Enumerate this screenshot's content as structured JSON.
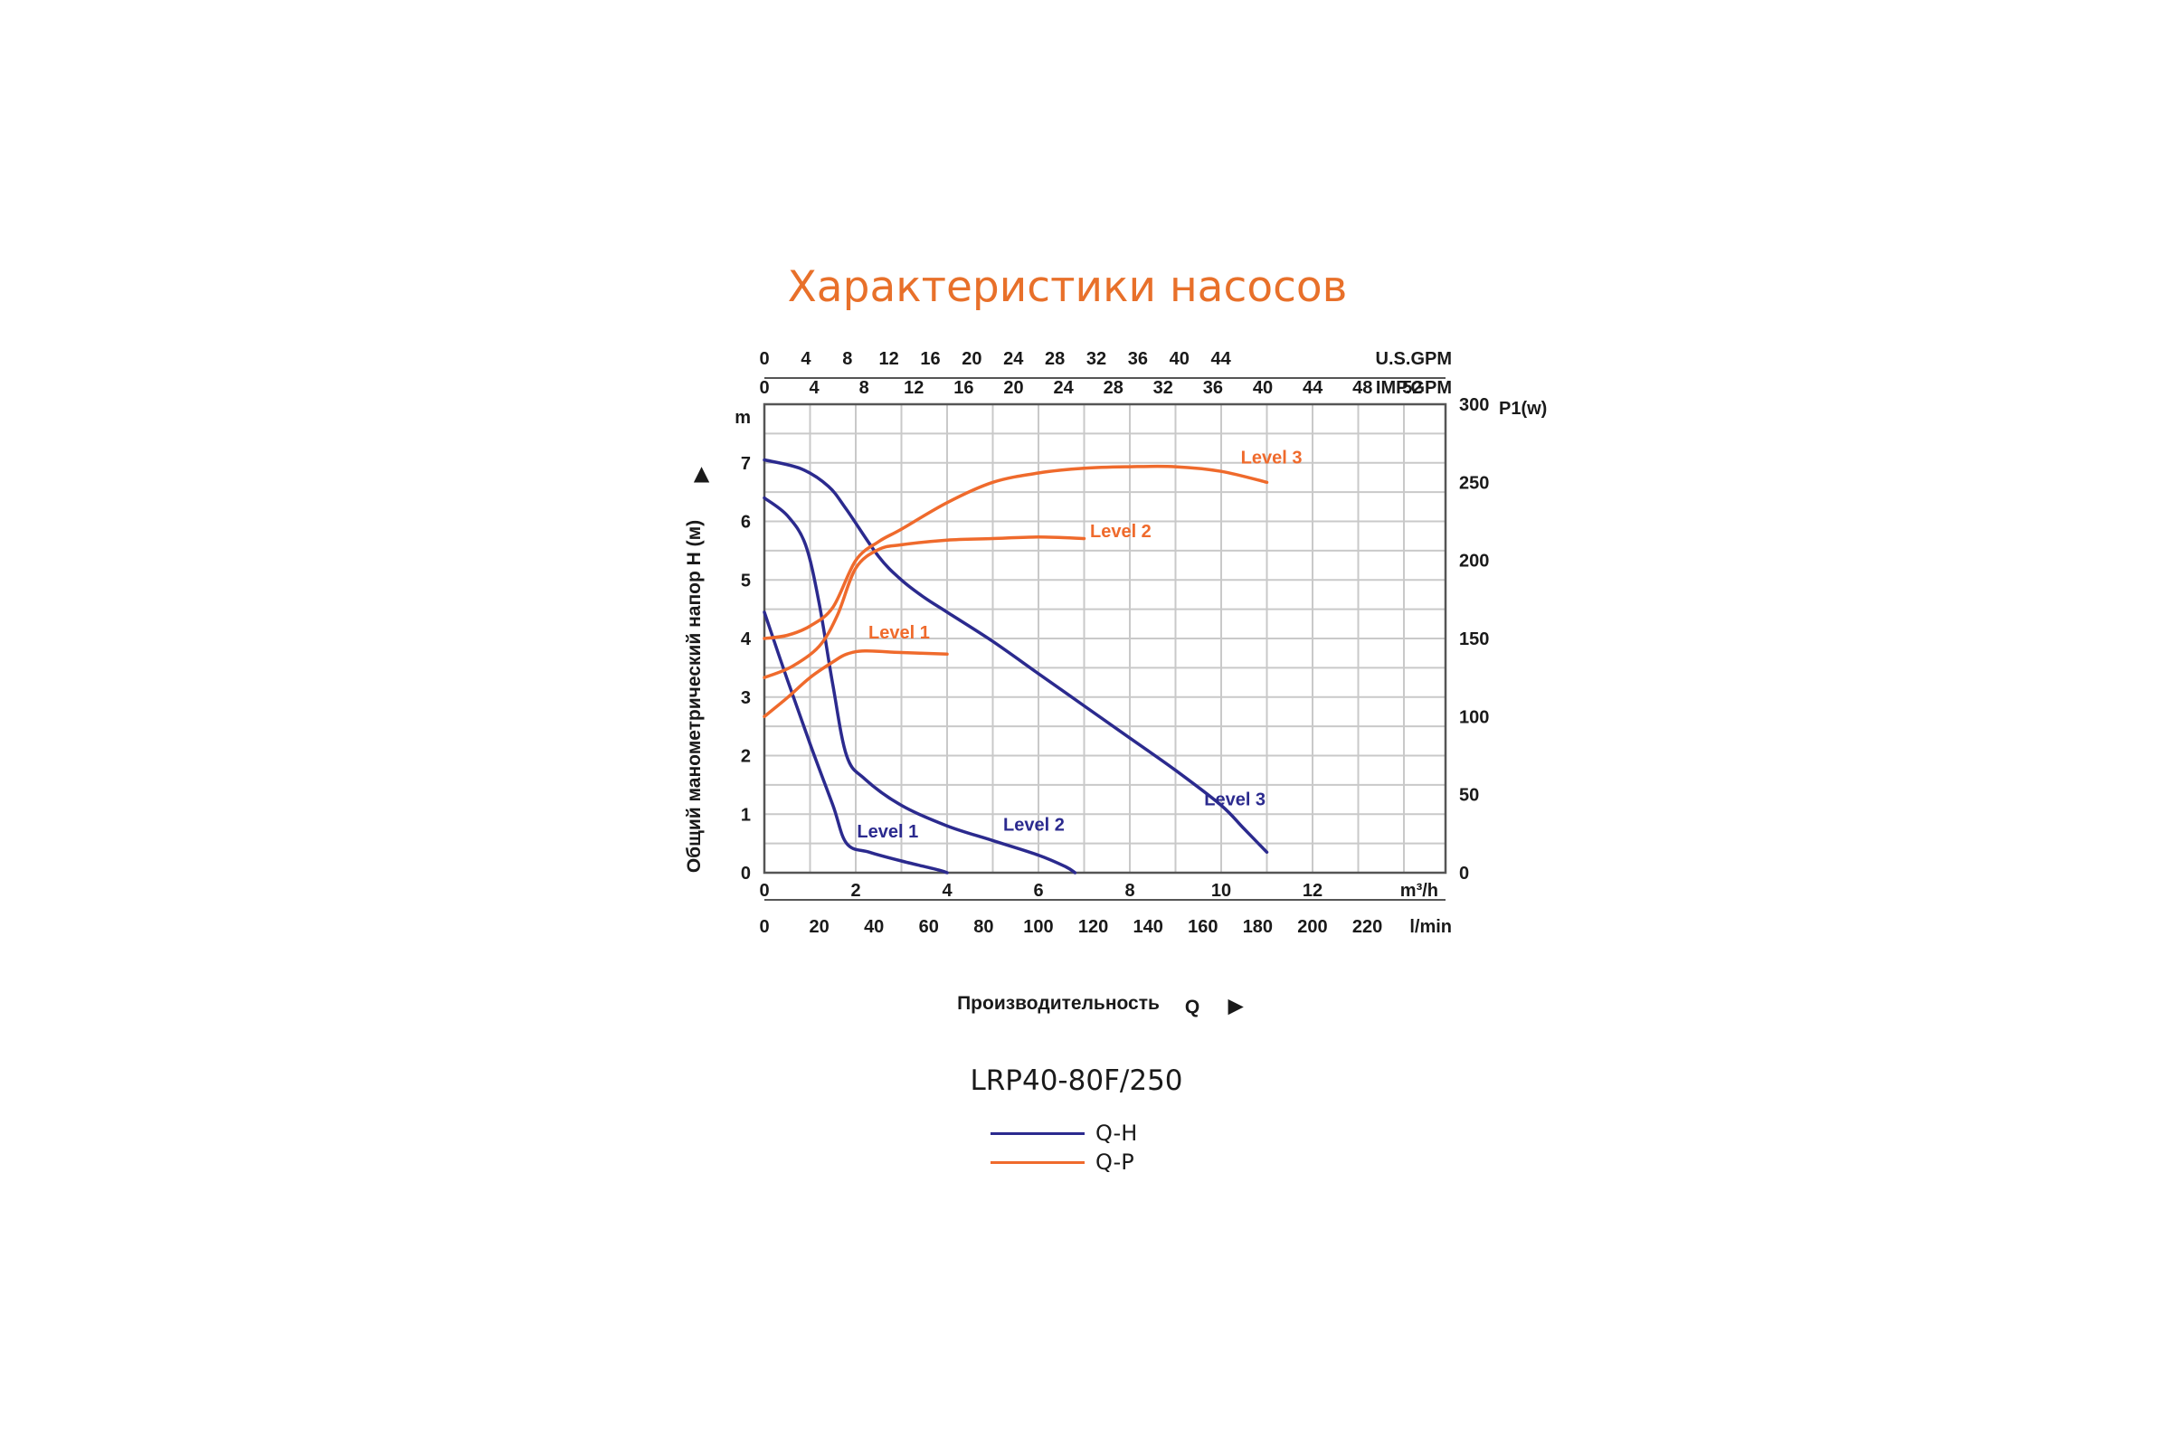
{
  "title": "Характеристики насосов",
  "model": "LRP40-80F/250",
  "colors": {
    "qh": "#2b2a8e",
    "qp": "#ef6a2c",
    "grid": "#c9c9c9",
    "frame": "#555555",
    "title": "#e8702a"
  },
  "legend": [
    {
      "label": "Q-H",
      "color": "#2b2a8e"
    },
    {
      "label": "Q-P",
      "color": "#ef6a2c"
    }
  ],
  "chart_data": {
    "type": "line",
    "title": "Характеристики насосов",
    "grid": true,
    "xaxis_primary": {
      "label": "m³/h",
      "ticks": [
        0,
        2,
        4,
        6,
        8,
        10,
        12
      ],
      "range": [
        0,
        15
      ]
    },
    "xaxis_lmin": {
      "label": "l/min",
      "ticks": [
        0,
        20,
        40,
        60,
        80,
        100,
        120,
        140,
        160,
        180,
        200,
        220
      ]
    },
    "xaxis_usgpm": {
      "label": "U.S.GPM",
      "ticks": [
        0,
        4,
        8,
        12,
        16,
        20,
        24,
        28,
        32,
        36,
        40,
        44
      ]
    },
    "xaxis_impgpm": {
      "label": "IMP.GPM",
      "ticks": [
        0,
        4,
        8,
        12,
        16,
        20,
        24,
        28,
        32,
        36,
        40,
        44,
        48,
        52
      ]
    },
    "yaxis_left": {
      "label": "m",
      "title": "Общий манометрический напор H (м)",
      "arrow": "▶",
      "ticks": [
        0,
        1,
        2,
        3,
        4,
        5,
        6,
        7
      ],
      "range": [
        0,
        8
      ]
    },
    "yaxis_right": {
      "label": "P1(w)",
      "ticks": [
        0,
        50,
        100,
        150,
        200,
        250,
        300
      ],
      "range": [
        0,
        300
      ]
    },
    "xlabel": {
      "text": "Производительность",
      "symbol": "Q",
      "arrow": "▶"
    },
    "series": [
      {
        "name": "Level 1",
        "kind": "Q-H",
        "axis": "left",
        "x": [
          0,
          0.5,
          1.0,
          1.5,
          1.8,
          2.3,
          3.0,
          3.8,
          4.0
        ],
        "y": [
          4.45,
          3.3,
          2.2,
          1.15,
          0.5,
          0.35,
          0.2,
          0.05,
          0.0
        ]
      },
      {
        "name": "Level 2",
        "kind": "Q-H",
        "axis": "left",
        "x": [
          0,
          0.5,
          0.9,
          1.2,
          1.5,
          1.8,
          2.2,
          3.0,
          4.0,
          5.0,
          6.0,
          6.6,
          6.8
        ],
        "y": [
          6.4,
          6.1,
          5.6,
          4.6,
          3.2,
          2.0,
          1.6,
          1.15,
          0.8,
          0.55,
          0.3,
          0.1,
          0.0
        ]
      },
      {
        "name": "Level 3",
        "kind": "Q-H",
        "axis": "left",
        "x": [
          0,
          0.8,
          1.4,
          1.8,
          2.5,
          3.0,
          3.5,
          4.0,
          5.0,
          6.0,
          7.0,
          8.0,
          9.0,
          10.0,
          10.5,
          11.0
        ],
        "y": [
          7.05,
          6.9,
          6.6,
          6.2,
          5.4,
          5.0,
          4.7,
          4.45,
          3.95,
          3.4,
          2.85,
          2.3,
          1.75,
          1.15,
          0.75,
          0.35
        ]
      },
      {
        "name": "Level 1",
        "kind": "Q-P",
        "axis": "right",
        "x": [
          0,
          0.5,
          1.0,
          1.5,
          1.8,
          2.2,
          3.0,
          4.0
        ],
        "y": [
          100,
          112,
          125,
          135,
          140,
          142,
          141,
          140
        ]
      },
      {
        "name": "Level 2",
        "kind": "Q-P",
        "axis": "right",
        "x": [
          0,
          0.6,
          1.2,
          1.6,
          2.0,
          2.5,
          3.0,
          4.0,
          5.0,
          6.0,
          7.0
        ],
        "y": [
          125,
          132,
          145,
          165,
          195,
          207,
          210,
          213,
          214,
          215,
          214
        ]
      },
      {
        "name": "Level 3",
        "kind": "Q-P",
        "axis": "right",
        "x": [
          0,
          0.5,
          1.0,
          1.5,
          2.0,
          2.5,
          3.0,
          4.0,
          5.0,
          6.0,
          7.0,
          8.0,
          9.0,
          10.0,
          11.0
        ],
        "y": [
          150,
          152,
          158,
          170,
          200,
          212,
          220,
          237,
          250,
          256,
          259,
          260,
          260,
          257,
          250
        ]
      }
    ],
    "annotations": [
      {
        "text": "Level 1",
        "color": "#2b2a8e",
        "x": 2.7,
        "y": 0.6
      },
      {
        "text": "Level 2",
        "color": "#2b2a8e",
        "x": 5.9,
        "y": 0.72
      },
      {
        "text": "Level 3",
        "color": "#2b2a8e",
        "x": 10.3,
        "y": 1.15
      },
      {
        "text": "Level 1",
        "color": "#ef6a2c",
        "x": 2.95,
        "y_right": 150
      },
      {
        "text": "Level 2",
        "color": "#ef6a2c",
        "x": 7.8,
        "y_right": 215
      },
      {
        "text": "Level 3",
        "color": "#ef6a2c",
        "x": 11.1,
        "y_right": 262
      }
    ]
  }
}
